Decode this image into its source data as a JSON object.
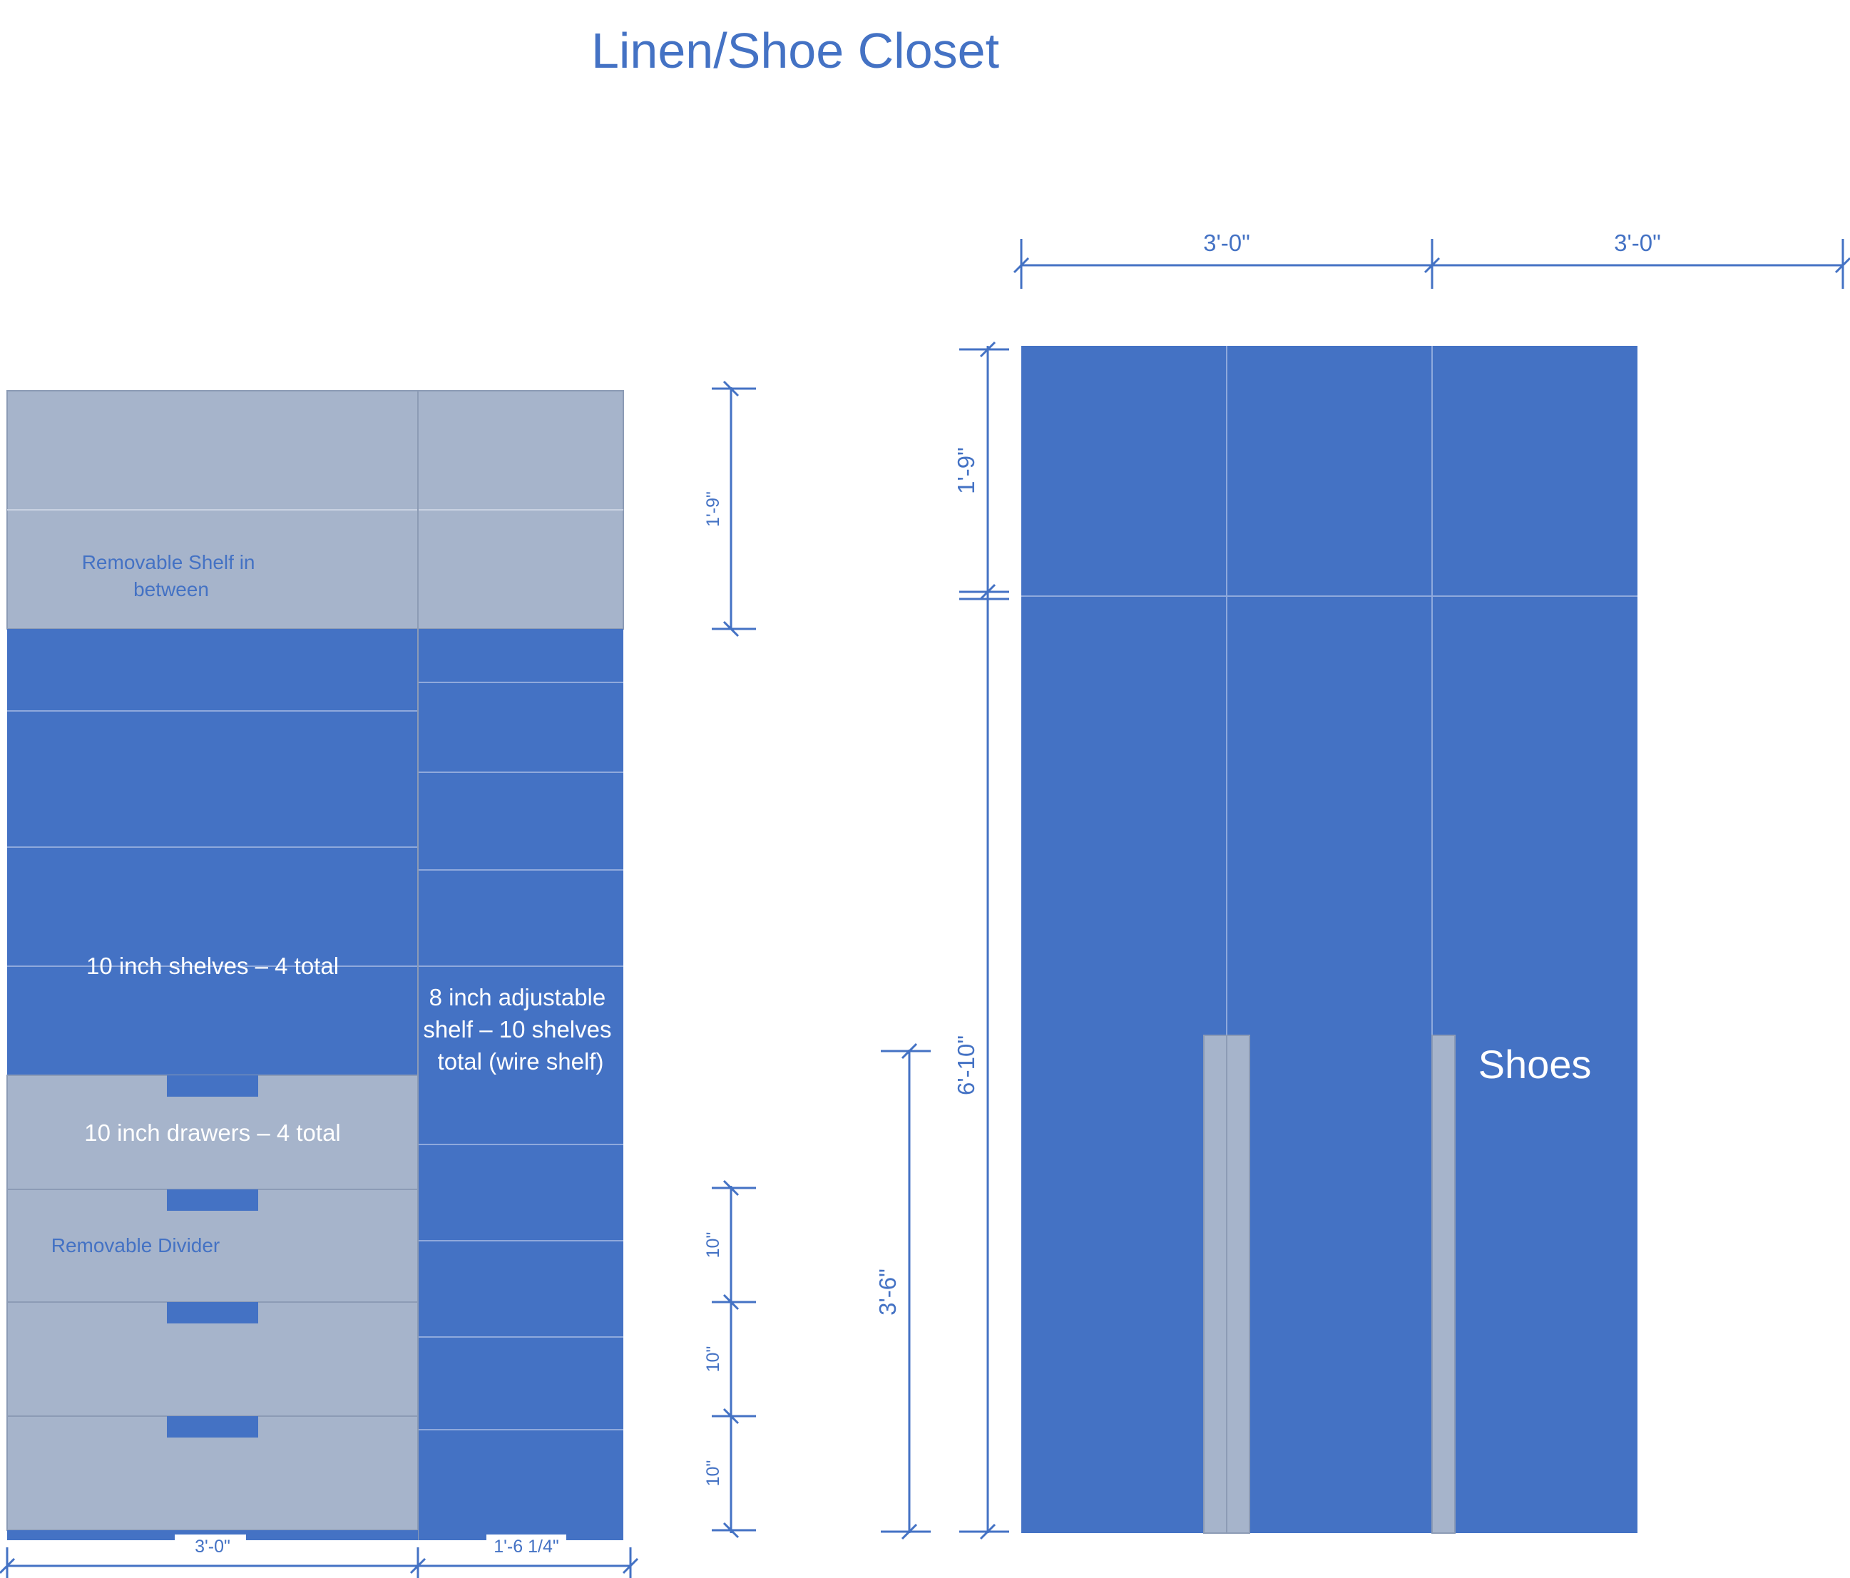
{
  "title": "Linen/Shoe Closet",
  "colors": {
    "blue": "#4472C4",
    "gray": "#A6B4CB",
    "line": "#4472C4",
    "white": "#FFFFFF"
  },
  "left_elevation": {
    "removable_shelf_note": [
      "Removable Shelf in",
      "between"
    ],
    "shelves_label": "10 inch shelves – 4 total",
    "adjustable_label": [
      "8 inch adjustable",
      "shelf – 10 shelves",
      "total (wire shelf)"
    ],
    "drawers_label": "10 inch drawers – 4 total",
    "divider_note": "Removable Divider",
    "dim_width_left": "3'-0\"",
    "dim_width_right": "1'-6 1/4\"",
    "dim_top_height": "1'-9\"",
    "dim_drawer_heights": [
      "10\"",
      "10\"",
      "10\""
    ]
  },
  "right_elevation": {
    "dim_widths": [
      "3'-0\"",
      "3'-0\""
    ],
    "dim_upper": "1'-9\"",
    "dim_lower": "6'-10\"",
    "dim_shoe_height": "3'-6\"",
    "shoes_label": "Shoes"
  }
}
